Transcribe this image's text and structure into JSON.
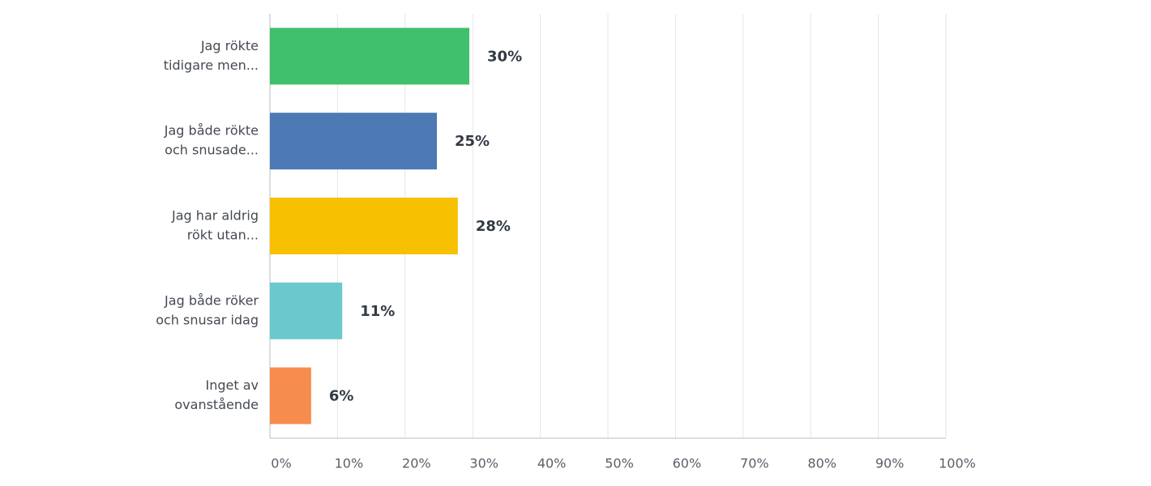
{
  "chart_data": {
    "type": "bar",
    "orientation": "horizontal",
    "categories": [
      [
        "Jag rökte",
        "tidigare men..."
      ],
      [
        "Jag både rökte",
        "och snusade..."
      ],
      [
        "Jag har aldrig",
        "rökt utan..."
      ],
      [
        "Jag både röker",
        "och snusar idag"
      ],
      [
        "Inget av",
        "ovanstående"
      ]
    ],
    "values": [
      29.5,
      24.7,
      27.8,
      10.7,
      6.1
    ],
    "value_labels": [
      "30%",
      "25%",
      "28%",
      "11%",
      "6%"
    ],
    "colors": [
      "#40bf6c",
      "#4d79b4",
      "#f7c000",
      "#6bc8cc",
      "#f78c4f"
    ],
    "xlim": [
      0,
      100
    ],
    "xticks": [
      {
        "value": 0,
        "label": "0%"
      },
      {
        "value": 10,
        "label": "10%"
      },
      {
        "value": 20,
        "label": "20%"
      },
      {
        "value": 30,
        "label": "30%"
      },
      {
        "value": 40,
        "label": "40%"
      },
      {
        "value": 50,
        "label": "50%"
      },
      {
        "value": 60,
        "label": "60%"
      },
      {
        "value": 70,
        "label": "70%"
      },
      {
        "value": 80,
        "label": "80%"
      },
      {
        "value": 90,
        "label": "90%"
      },
      {
        "value": 100,
        "label": "100%"
      }
    ],
    "grid": true
  }
}
